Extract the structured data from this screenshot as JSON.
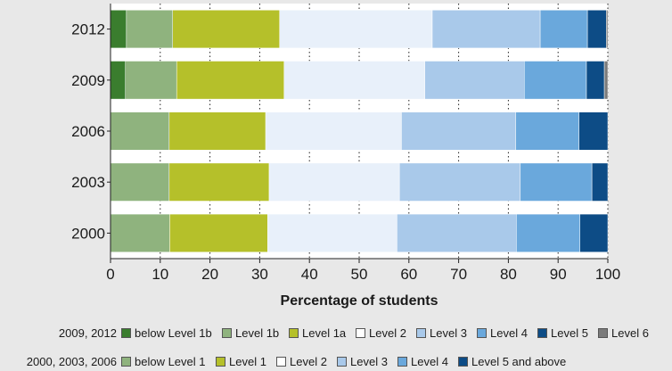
{
  "chart_data": {
    "type": "bar",
    "orientation": "horizontal",
    "stacked": true,
    "xlabel": "Percentage of students",
    "xlim": [
      0,
      100
    ],
    "xticks": [
      0,
      10,
      20,
      30,
      40,
      50,
      60,
      70,
      80,
      90,
      100
    ],
    "categories": [
      "2012",
      "2009",
      "2006",
      "2003",
      "2000"
    ],
    "series": [
      {
        "name": "below Level 1b",
        "color": "#3a7d2e",
        "values": [
          3.2,
          3.0,
          0,
          0,
          0
        ]
      },
      {
        "name": "Level 1b",
        "color": "#8fb37e",
        "values": [
          9.3,
          10.3,
          0,
          0,
          0
        ]
      },
      {
        "name": "below Level 1",
        "color": "#8fb37e",
        "values": [
          0,
          0,
          11.8,
          11.8,
          11.9
        ]
      },
      {
        "name": "Level 1a",
        "color": "#b5c02a",
        "values": [
          21.5,
          21.6,
          0,
          0,
          0
        ]
      },
      {
        "name": "Level 1",
        "color": "#b5c02a",
        "values": [
          0,
          0,
          19.4,
          20.1,
          19.7
        ]
      },
      {
        "name": "Level 2",
        "color": "#e8f0fa",
        "values": [
          30.7,
          28.3,
          27.3,
          26.2,
          26.0
        ]
      },
      {
        "name": "Level 3",
        "color": "#a9c9ea",
        "values": [
          21.7,
          20.0,
          23.0,
          24.3,
          24.0
        ]
      },
      {
        "name": "Level 4",
        "color": "#6aa8dc",
        "values": [
          9.5,
          12.5,
          12.7,
          14.4,
          12.8
        ]
      },
      {
        "name": "Level 5",
        "color": "#0d4c86",
        "values": [
          3.8,
          3.6,
          0,
          0,
          0
        ]
      },
      {
        "name": "Level 5 and above",
        "color": "#0d4c86",
        "values": [
          0,
          0,
          5.8,
          3.2,
          5.6
        ]
      },
      {
        "name": "Level 6",
        "color": "#7a7a7a",
        "values": [
          0.3,
          0.7,
          0,
          0,
          0
        ]
      }
    ],
    "grid": true,
    "legend_position": "bottom"
  },
  "legend": {
    "row1": {
      "label": "2009, 2012",
      "items": [
        {
          "name": "below Level 1b",
          "color": "#3a7d2e"
        },
        {
          "name": "Level 1b",
          "color": "#8fb37e"
        },
        {
          "name": "Level 1a",
          "color": "#b5c02a"
        },
        {
          "name": "Level 2",
          "color": "#ffffff"
        },
        {
          "name": "Level 3",
          "color": "#a9c9ea"
        },
        {
          "name": "Level 4",
          "color": "#6aa8dc"
        },
        {
          "name": "Level 5",
          "color": "#0d4c86"
        },
        {
          "name": "Level 6",
          "color": "#7a7a7a"
        }
      ]
    },
    "row2": {
      "label": "2000, 2003, 2006",
      "items": [
        {
          "name": "below Level 1",
          "color": "#8fb37e"
        },
        {
          "name": "Level 1",
          "color": "#b5c02a"
        },
        {
          "name": "Level 2",
          "color": "#ffffff"
        },
        {
          "name": "Level 3",
          "color": "#a9c9ea"
        },
        {
          "name": "Level 4",
          "color": "#6aa8dc"
        },
        {
          "name": "Level 5 and above",
          "color": "#0d4c86"
        }
      ]
    }
  }
}
